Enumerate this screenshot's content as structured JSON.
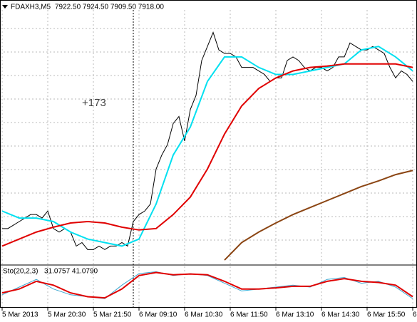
{
  "chart_data": [
    {
      "type": "line",
      "title": "FDAXH3,M5",
      "subtitle": "7922.50 7924.50 7909.50 7918.00",
      "annotation": "+173",
      "categories": [
        "5 Mar 2013",
        null,
        null,
        null,
        null,
        null,
        null,
        null,
        "5 Mar 20:30",
        null,
        null,
        null,
        null,
        null,
        null,
        null,
        "5 Mar 21:50",
        null,
        null,
        null,
        null,
        null,
        null,
        null,
        "6 Mar 09:10",
        null,
        null,
        null,
        null,
        null,
        null,
        null,
        "6 Mar 10:30",
        null,
        null,
        null,
        null,
        null,
        null,
        null,
        "6 Mar 11:50",
        null,
        null,
        null,
        null,
        null,
        null,
        null,
        "6 Mar 13:10",
        null,
        null,
        null,
        null,
        null,
        null,
        null,
        "6 Mar 14:30",
        null,
        null,
        null,
        null,
        null,
        null,
        null,
        "6 Mar 15:50",
        null,
        null,
        null,
        null,
        null,
        null,
        null,
        "6"
      ],
      "ylim": [
        7780,
        7960
      ],
      "grid": true,
      "series": [
        {
          "color": "#000000",
          "values": [
            7805,
            7805,
            7807.5,
            7810,
            7812.5,
            7815,
            7815,
            7812.5,
            7817.5,
            7805,
            7802.5,
            7805,
            7802.5,
            7792.5,
            7795,
            7790,
            7790,
            7792.5,
            7790,
            7792.5,
            7792.5,
            7795,
            7792.5,
            7810,
            7815,
            7817.5,
            7822.5,
            7847.5,
            7857.5,
            7865,
            7880,
            7885,
            7867.5,
            7890,
            7900,
            7925,
            7935,
            7945,
            7932.5,
            7930,
            7930,
            7927.5,
            7920,
            7920,
            7920,
            7917.5,
            7915,
            7910,
            7912.5,
            7912.5,
            7925,
            7927.5,
            7925,
            7920,
            7917.5,
            7920,
            7920,
            7917.5,
            7920,
            7927.5,
            7927.5,
            7937.5,
            7935,
            7932.5,
            7932.5,
            7935,
            7932.5,
            7930,
            7920,
            7912.5,
            7917.5,
            7915,
            7910
          ]
        },
        {
          "color": "#00e0f0",
          "x": [
            0,
            3,
            6,
            9,
            12,
            15,
            18,
            21,
            24,
            27,
            30,
            33,
            36,
            39,
            42,
            45,
            48,
            51,
            54,
            57,
            60,
            63,
            66,
            69,
            72
          ],
          "values": [
            7817.5,
            7812.5,
            7812.5,
            7810,
            7802.5,
            7797.5,
            7795,
            7792.5,
            7797.5,
            7822.5,
            7857.5,
            7877.5,
            7910,
            7927.5,
            7927.5,
            7920,
            7915,
            7915,
            7917.5,
            7920,
            7922.5,
            7932.5,
            7935,
            7927.5,
            7917.5
          ]
        },
        {
          "color": "#e00000",
          "x": [
            0,
            3,
            6,
            9,
            12,
            15,
            18,
            21,
            24,
            27,
            30,
            33,
            36,
            39,
            42,
            45,
            48,
            51,
            54,
            57,
            60,
            63,
            66,
            69,
            72
          ],
          "values": [
            7792.5,
            7797.5,
            7802.5,
            7806,
            7809,
            7810,
            7809,
            7806,
            7804,
            7805,
            7815,
            7827.5,
            7847.5,
            7872.5,
            7892.5,
            7905,
            7912.5,
            7917.5,
            7920,
            7921,
            7922.5,
            7922.5,
            7922.5,
            7922.5,
            7920
          ]
        },
        {
          "color": "#8b4513",
          "x": [
            39,
            42,
            45,
            48,
            51,
            54,
            57,
            60,
            63,
            66,
            69,
            72
          ],
          "values": [
            7782.5,
            7795,
            7802.5,
            7809,
            7815,
            7820,
            7825,
            7830,
            7835,
            7839,
            7843.5,
            7846.5
          ]
        }
      ]
    },
    {
      "type": "line",
      "title": "Sto(20,2,3)",
      "subtitle": "31.0757 41.0790",
      "ylim": [
        0,
        100
      ],
      "series": [
        {
          "color": "#3fa7d0",
          "x": [
            0,
            3,
            6,
            9,
            12,
            15,
            18,
            21,
            24,
            27,
            30,
            33,
            36,
            39,
            42,
            45,
            48,
            51,
            54,
            57,
            60,
            63,
            66,
            69,
            72
          ],
          "values": [
            30,
            50,
            70,
            45,
            30,
            25,
            20,
            55,
            85,
            90,
            80,
            85,
            80,
            60,
            40,
            45,
            50,
            55,
            50,
            70,
            75,
            60,
            65,
            50,
            20
          ]
        },
        {
          "color": "#e00000",
          "x": [
            0,
            3,
            6,
            9,
            12,
            15,
            18,
            21,
            24,
            27,
            30,
            33,
            36,
            39,
            42,
            45,
            48,
            51,
            54,
            57,
            60,
            63,
            66,
            69,
            72
          ],
          "values": [
            35,
            45,
            65,
            55,
            35,
            25,
            22,
            45,
            80,
            88,
            82,
            84,
            82,
            65,
            45,
            45,
            48,
            52,
            52,
            65,
            72,
            65,
            62,
            55,
            25
          ]
        }
      ]
    }
  ]
}
